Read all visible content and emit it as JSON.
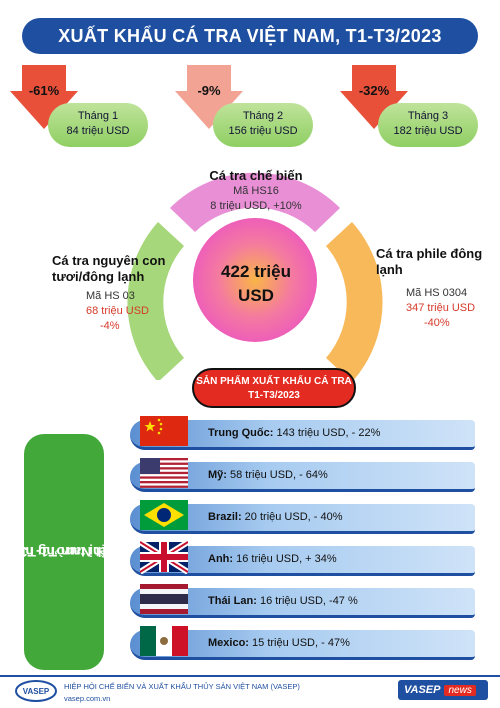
{
  "header": {
    "title": "XUẤT KHẨU CÁ TRA VIỆT NAM, T1-T3/2023"
  },
  "months": [
    {
      "change": "-61%",
      "label": "Tháng 1",
      "value": "84 triệu USD"
    },
    {
      "change": "-9%",
      "label": "Tháng 2",
      "value": "156 triệu USD"
    },
    {
      "change": "-32%",
      "label": "Tháng 3",
      "value": "182 triệu USD"
    }
  ],
  "categories": {
    "processed": {
      "title": "Cá tra chế biến",
      "code": "Mã HS16",
      "value": "8 triệu USD, +10%"
    },
    "whole": {
      "title": "Cá tra nguyên con tươi/đông lạnh",
      "code": "Mã HS 03",
      "value": "68 triệu USD",
      "change": "-4%"
    },
    "fillet": {
      "title": "Cá tra phile đông lạnh",
      "code": "Mã HS 0304",
      "value": "347 triệu USD",
      "change": "-40%"
    }
  },
  "total": {
    "line1": "422 triệu",
    "line2": "USD"
  },
  "product_badge": {
    "line1": "SẢN PHẨM XUẤT KHẨU CÁ TRA",
    "line2": "T1-T3/2023"
  },
  "markets_title": {
    "line1": "Top 6 thị trường nhập khẩu",
    "line2": "cá tra Việt Nam T1-T3/2023"
  },
  "markets": [
    {
      "country": "Trung Quốc:",
      "detail": " 143 triệu USD, - 22%",
      "flag": "china-flag"
    },
    {
      "country": "Mỹ:",
      "detail": " 58 triệu USD, - 64%",
      "flag": "usa-flag"
    },
    {
      "country": "Brazil:",
      "detail": " 20 triệu USD, - 40%",
      "flag": "brazil-flag"
    },
    {
      "country": "Anh:",
      "detail": " 16 triệu USD, + 34%",
      "flag": "uk-flag"
    },
    {
      "country": "Thái Lan:",
      "detail": " 16 triệu USD, -47 %",
      "flag": "thailand-flag"
    },
    {
      "country": "Mexico:",
      "detail": " 15 triệu USD, - 47%",
      "flag": "mexico-flag"
    }
  ],
  "footer": {
    "org": "HIỆP HỘI CHẾ BIẾN VÀ XUẤT KHẨU THỦY SẢN VIỆT NAM (VASEP)",
    "url": "vasep.com.vn",
    "logo_text": "VASEP",
    "brand": "VASEP",
    "brand_suffix": "news"
  },
  "colors": {
    "header": "#1f4fa0",
    "arrow": "#e8503a",
    "green": "#8fcf63",
    "pink": "#e88fd6",
    "orange": "#f7b24a",
    "badge": "#e32b21"
  }
}
